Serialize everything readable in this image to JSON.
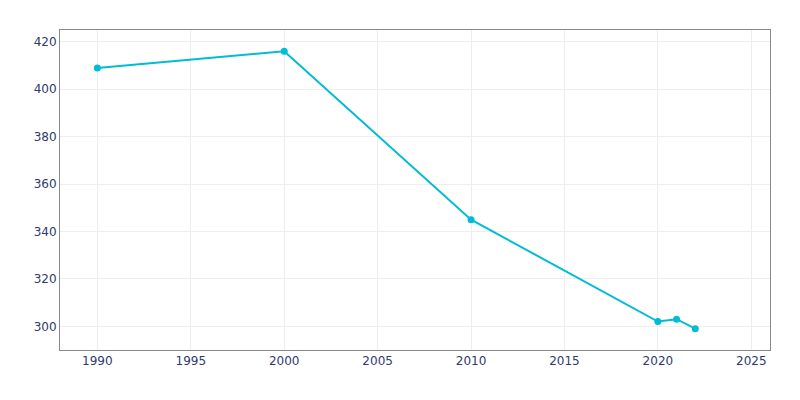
{
  "chart_data": {
    "type": "line",
    "x": [
      1990,
      2000,
      2010,
      2020,
      2021,
      2022
    ],
    "values": [
      409,
      416,
      345,
      302,
      303,
      299
    ],
    "color": "#00bcd4",
    "marker": "circle",
    "xlim": [
      1988,
      2026
    ],
    "ylim": [
      290,
      425
    ],
    "xticks": [
      1990,
      1995,
      2000,
      2005,
      2010,
      2015,
      2020,
      2025
    ],
    "yticks": [
      300,
      320,
      340,
      360,
      380,
      400,
      420
    ],
    "grid": true
  }
}
